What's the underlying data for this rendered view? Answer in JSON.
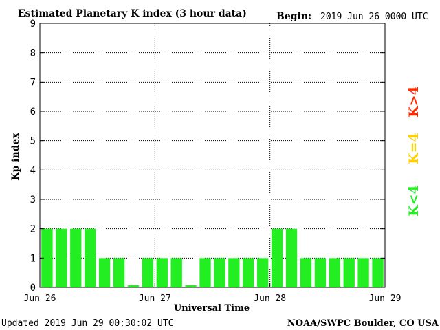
{
  "header": {
    "title": "Estimated Planetary K index (3 hour data)",
    "begin_label": "Begin:",
    "begin_value": "2019 Jun 26 0000 UTC"
  },
  "footer": {
    "updated": "Updated 2019 Jun 29 00:30:02 UTC",
    "credit": "NOAA/SWPC Boulder, CO USA"
  },
  "legend": {
    "high": {
      "label": "K>4",
      "color": "#ff2a00"
    },
    "equal": {
      "label": "K=4",
      "color": "#ffd000"
    },
    "low": {
      "label": "K<4",
      "color": "#22ee22"
    }
  },
  "chart_data": {
    "type": "bar",
    "title": "Estimated Planetary K index (3 hour data)",
    "xlabel": "Universal Time",
    "ylabel": "Kp index",
    "ylim": [
      0,
      9
    ],
    "yticks": [
      0,
      1,
      2,
      3,
      4,
      5,
      6,
      7,
      8,
      9
    ],
    "xtick_labels": [
      "Jun 26",
      "Jun 27",
      "Jun 28",
      "Jun 29"
    ],
    "interval_hours": 3,
    "grid": true,
    "bar_color": "#22ee22",
    "values": [
      2,
      2,
      2,
      2,
      1,
      1,
      0,
      1,
      1,
      1,
      0,
      1,
      1,
      1,
      1,
      1,
      2,
      2,
      1,
      1,
      1,
      1,
      1,
      1
    ]
  }
}
